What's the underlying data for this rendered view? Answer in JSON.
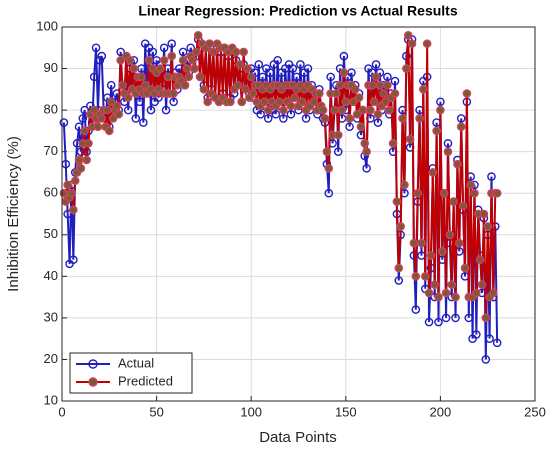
{
  "chart_data": {
    "type": "line",
    "title": "Linear Regression: Prediction vs Actual Results",
    "x_label": "Data Points",
    "y_label": "Inhibition Efficiency (%)",
    "xlim": [
      0,
      250
    ],
    "xticks": [
      0,
      50,
      100,
      150,
      200,
      250
    ],
    "ylim": [
      10,
      100
    ],
    "yticks": [
      10,
      20,
      30,
      40,
      50,
      60,
      70,
      80,
      90,
      100
    ],
    "grid": true,
    "legend": "lower left",
    "x": [
      1,
      2,
      3,
      4,
      5,
      6,
      7,
      8,
      9,
      10,
      11,
      12,
      13,
      14,
      15,
      16,
      17,
      18,
      19,
      20,
      21,
      22,
      23,
      24,
      25,
      26,
      27,
      28,
      29,
      30,
      31,
      32,
      33,
      34,
      35,
      36,
      37,
      38,
      39,
      40,
      41,
      42,
      43,
      44,
      45,
      46,
      47,
      48,
      49,
      50,
      51,
      52,
      53,
      54,
      55,
      56,
      57,
      58,
      59,
      60,
      61,
      62,
      63,
      64,
      65,
      66,
      67,
      68,
      69,
      70,
      71,
      72,
      73,
      74,
      75,
      76,
      77,
      78,
      79,
      80,
      81,
      82,
      83,
      84,
      85,
      86,
      87,
      88,
      89,
      90,
      91,
      92,
      93,
      94,
      95,
      96,
      97,
      98,
      99,
      100,
      101,
      102,
      103,
      104,
      105,
      106,
      107,
      108,
      109,
      110,
      111,
      112,
      113,
      114,
      115,
      116,
      117,
      118,
      119,
      120,
      121,
      122,
      123,
      124,
      125,
      126,
      127,
      128,
      129,
      130,
      131,
      132,
      133,
      134,
      135,
      136,
      137,
      138,
      139,
      140,
      141,
      142,
      143,
      144,
      145,
      146,
      147,
      148,
      149,
      150,
      151,
      152,
      153,
      154,
      155,
      156,
      157,
      158,
      159,
      160,
      161,
      162,
      163,
      164,
      165,
      166,
      167,
      168,
      169,
      170,
      171,
      172,
      173,
      174,
      175,
      176,
      177,
      178,
      179,
      180,
      181,
      182,
      183,
      184,
      185,
      186,
      187,
      188,
      189,
      190,
      191,
      192,
      193,
      194,
      195,
      196,
      197,
      198,
      199,
      200,
      201,
      202,
      203,
      204,
      205,
      206,
      207,
      208,
      209,
      210,
      211,
      212,
      213,
      214,
      215,
      216,
      217,
      218,
      219,
      220,
      221,
      222,
      223,
      224,
      225,
      226,
      227,
      228,
      229,
      230
    ],
    "series": [
      {
        "name": "Actual",
        "color": "#1f1fbf",
        "marker_fill": "none",
        "values": [
          77,
          67,
          55,
          43,
          62,
          44,
          65,
          72,
          76,
          70,
          78,
          80,
          70,
          75,
          81,
          77,
          88,
          95,
          80,
          92,
          93,
          80,
          78,
          83,
          76,
          86,
          80,
          82,
          84,
          80,
          94,
          85,
          82,
          93,
          80,
          90,
          85,
          92,
          78,
          88,
          82,
          90,
          77,
          96,
          84,
          95,
          80,
          94,
          82,
          92,
          83,
          91,
          85,
          95,
          80,
          90,
          84,
          96,
          82,
          89,
          85,
          90,
          88,
          94,
          86,
          92,
          89,
          95,
          93,
          90,
          93,
          97,
          88,
          96,
          86,
          95,
          83,
          96,
          85,
          94,
          83,
          95,
          82,
          94,
          84,
          95,
          82,
          93,
          83,
          94,
          84,
          92,
          86,
          90,
          82,
          91,
          85,
          89,
          84,
          90,
          83,
          89,
          80,
          91,
          79,
          88,
          81,
          90,
          78,
          89,
          80,
          91,
          79,
          92,
          81,
          89,
          78,
          90,
          82,
          91,
          79,
          90,
          83,
          88,
          80,
          91,
          81,
          89,
          78,
          90,
          80,
          86,
          82,
          84,
          79,
          85,
          80,
          78,
          77,
          67,
          60,
          88,
          72,
          80,
          86,
          70,
          90,
          78,
          93,
          80,
          88,
          76,
          89,
          82,
          86,
          78,
          84,
          74,
          80,
          69,
          66,
          90,
          78,
          89,
          83,
          91,
          77,
          89,
          80,
          86,
          82,
          88,
          79,
          84,
          70,
          87,
          55,
          39,
          50,
          80,
          60,
          93,
          97,
          71,
          97,
          45,
          32,
          58,
          80,
          45,
          87,
          37,
          88,
          29,
          42,
          66,
          35,
          77,
          29,
          82,
          44,
          60,
          30,
          72,
          48,
          35,
          58,
          30,
          68,
          46,
          78,
          56,
          40,
          82,
          30,
          64,
          25,
          62,
          26,
          56,
          45,
          36,
          54,
          20,
          50,
          25,
          64,
          35,
          52,
          24
        ]
      },
      {
        "name": "Predicted",
        "color": "#c00000",
        "marker_fill": "#7a5a30",
        "values": [
          60,
          58,
          62,
          59,
          60,
          56,
          63,
          65,
          68,
          66,
          72,
          75,
          68,
          72,
          79,
          76,
          80,
          78,
          76,
          79,
          78,
          80,
          76,
          80,
          75,
          82,
          78,
          80,
          81,
          79,
          92,
          86,
          84,
          93,
          83,
          92,
          85,
          90,
          84,
          88,
          85,
          88,
          84,
          86,
          84,
          92,
          85,
          90,
          84,
          89,
          85,
          90,
          84,
          92,
          84,
          88,
          84,
          93,
          84,
          88,
          86,
          88,
          87,
          92,
          86,
          90,
          88,
          93,
          92,
          90,
          94,
          98,
          88,
          96,
          85,
          95,
          82,
          96,
          84,
          94,
          83,
          96,
          82,
          95,
          83,
          95,
          82,
          94,
          82,
          95,
          85,
          94,
          86,
          91,
          82,
          94,
          85,
          90,
          83,
          88,
          84,
          86,
          82,
          86,
          81,
          85,
          82,
          86,
          80,
          85,
          82,
          86,
          81,
          86,
          82,
          85,
          80,
          86,
          82,
          86,
          81,
          86,
          83,
          85,
          81,
          86,
          82,
          85,
          80,
          86,
          81,
          85,
          82,
          84,
          80,
          84,
          81,
          80,
          78,
          70,
          66,
          84,
          74,
          80,
          84,
          74,
          86,
          80,
          89,
          82,
          86,
          78,
          86,
          82,
          85,
          79,
          83,
          76,
          80,
          72,
          70,
          86,
          80,
          86,
          82,
          88,
          79,
          86,
          81,
          84,
          82,
          86,
          80,
          83,
          72,
          84,
          58,
          42,
          52,
          78,
          62,
          90,
          98,
          73,
          96,
          48,
          40,
          60,
          78,
          48,
          85,
          40,
          96,
          36,
          45,
          65,
          38,
          75,
          35,
          80,
          46,
          60,
          36,
          70,
          50,
          38,
          58,
          35,
          67,
          48,
          76,
          57,
          42,
          84,
          35,
          62,
          35,
          60,
          36,
          55,
          44,
          38,
          55,
          30,
          52,
          35,
          60,
          36,
          60,
          60
        ]
      }
    ]
  }
}
